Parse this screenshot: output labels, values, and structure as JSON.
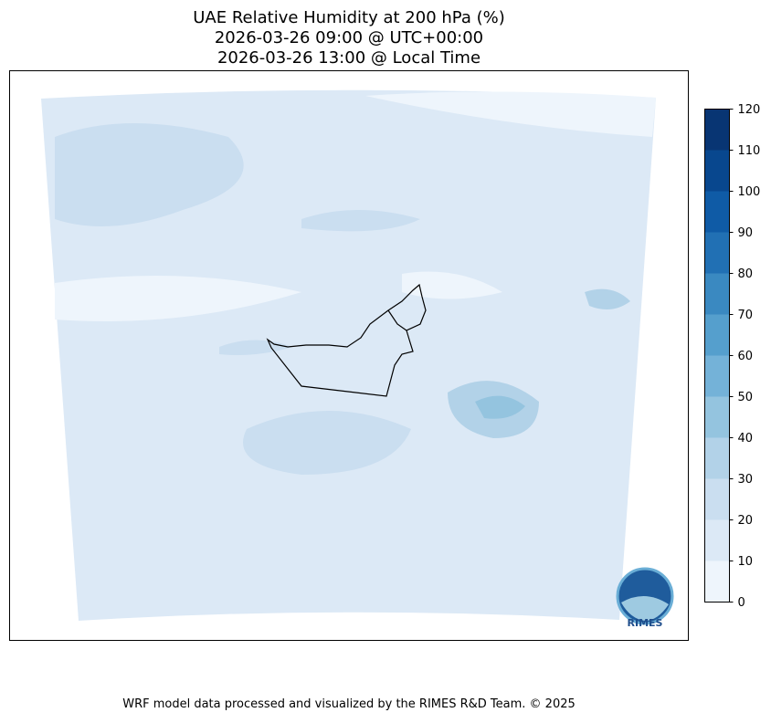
{
  "header": {
    "title_lines": [
      "UAE Relative Humidity at 200 hPa (%)",
      "2026-03-26 09:00 @ UTC+00:00",
      "2026-03-26 13:00 @ Local Time"
    ]
  },
  "colorbar": {
    "lim": [
      0,
      120
    ],
    "ticks": [
      0,
      10,
      20,
      30,
      40,
      50,
      60,
      70,
      80,
      90,
      100,
      110,
      120
    ],
    "colors": [
      "#eef5fc",
      "#dce9f6",
      "#cadef0",
      "#b2d2e8",
      "#94c4df",
      "#74b2d8",
      "#559fcd",
      "#3a89c1",
      "#2170b4",
      "#0f5ba6",
      "#08478e",
      "#083573"
    ]
  },
  "logo_text": "RIMES",
  "footer": "WRF model data processed and visualized by the RIMES R&D Team. © 2025"
}
